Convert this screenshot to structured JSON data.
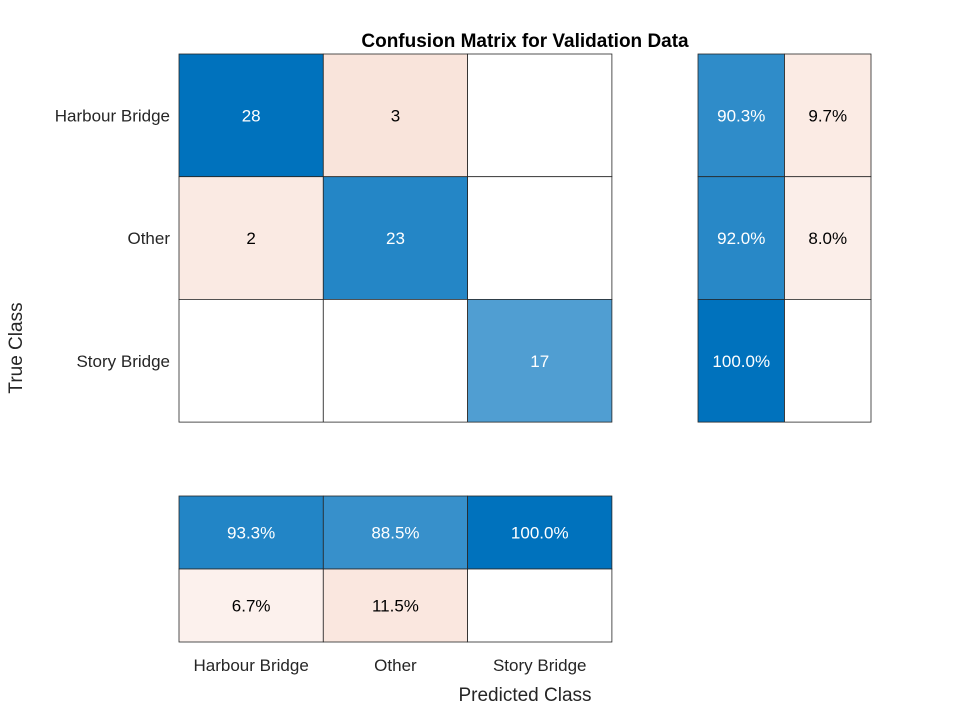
{
  "chart_data": {
    "type": "heatmap",
    "title": "Confusion Matrix for Validation Data",
    "xlabel": "Predicted Class",
    "ylabel": "True Class",
    "classes": [
      "Harbour Bridge",
      "Other",
      "Story Bridge"
    ],
    "matrix": [
      [
        28,
        3,
        null
      ],
      [
        2,
        23,
        null
      ],
      [
        null,
        null,
        17
      ]
    ],
    "row_summary": [
      [
        "90.3%",
        "9.7%"
      ],
      [
        "92.0%",
        "8.0%"
      ],
      [
        "100.0%",
        null
      ]
    ],
    "column_summary": [
      [
        "93.3%",
        "88.5%",
        "100.0%"
      ],
      [
        "6.7%",
        "11.5%",
        null
      ]
    ],
    "colors": {
      "correct_max": "#0072bd",
      "incorrect_max": "#d95319",
      "background": "#ffffff",
      "grid": "#262626"
    }
  }
}
